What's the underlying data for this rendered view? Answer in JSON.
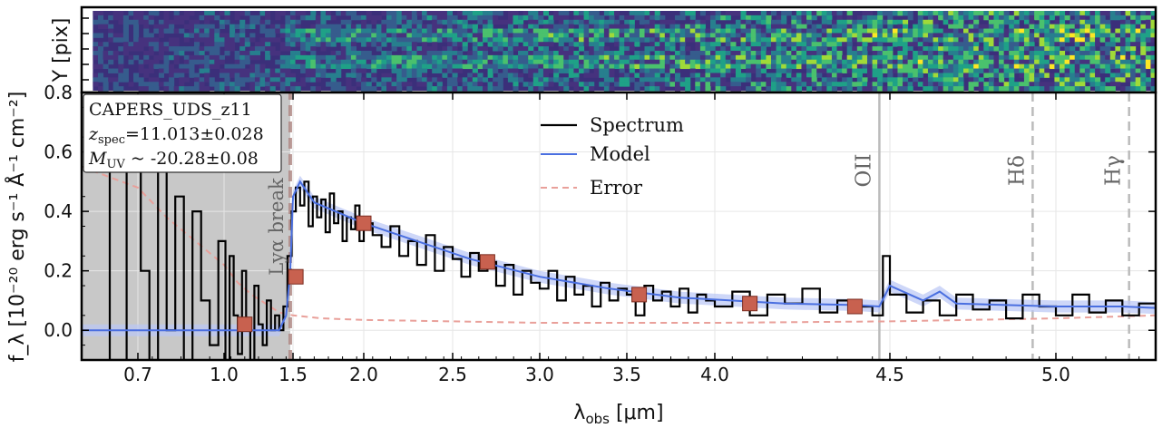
{
  "chart_data": {
    "type": "line",
    "object_name": "CAPERS_UDS_z11",
    "z_spec_label": "z",
    "z_spec_sub": "spec",
    "z_spec_value": "=11.013±0.028",
    "muv_label": "M",
    "muv_sub": "UV",
    "muv_value": " ~ -20.28±0.08",
    "xlabel_main": "λ",
    "xlabel_sub": "obs",
    "xlabel_unit": " [μm]",
    "ylabel": "f_λ [10⁻²⁰ erg s⁻¹ Å⁻¹ cm⁻²]",
    "y2d_label": "Y [pix]",
    "ylim": [
      -0.1,
      0.8
    ],
    "yticks": [
      0.0,
      0.2,
      0.4,
      0.6,
      0.8
    ],
    "ytick_labels": [
      "0.0",
      "0.2",
      "0.4",
      "0.6",
      "0.8"
    ],
    "xticks": [
      0.7,
      1.0,
      1.5,
      2.0,
      2.5,
      3.0,
      3.5,
      4.0,
      4.5,
      5.0
    ],
    "xtick_labels": [
      "0.7",
      "1.0",
      "1.5",
      "2.0",
      "2.5",
      "3.0",
      "3.5",
      "4.0",
      "4.5",
      "5.0"
    ],
    "legend": {
      "position": "top-center",
      "entries": [
        {
          "label": "Spectrum",
          "color": "#000000",
          "style": "solid"
        },
        {
          "label": "Model",
          "color": "#4a6fe0",
          "style": "solid"
        },
        {
          "label": "Error",
          "color": "#e9a09a",
          "style": "dashed"
        }
      ]
    },
    "lines": [
      {
        "label": "OII",
        "x": 4.47,
        "style": "solid",
        "color": "#bbbbbb"
      },
      {
        "label": "Hδ",
        "x": 4.93,
        "style": "dashed",
        "color": "#bbbbbb"
      },
      {
        "label": "Hγ",
        "x": 5.22,
        "style": "dashed",
        "color": "#bbbbbb"
      }
    ],
    "break": {
      "label": "Lyα break",
      "x": 1.48
    },
    "shaded_region": {
      "x": [
        0.6,
        1.48
      ],
      "color": "#c8c8c8"
    },
    "model_points": [
      {
        "x": 1.15,
        "y": 0.02
      },
      {
        "x": 1.52,
        "y": 0.18
      },
      {
        "x": 2.0,
        "y": 0.36
      },
      {
        "x": 2.7,
        "y": 0.23
      },
      {
        "x": 3.57,
        "y": 0.12
      },
      {
        "x": 4.1,
        "y": 0.09
      },
      {
        "x": 4.4,
        "y": 0.08
      }
    ],
    "model_curve": {
      "x": [
        0.6,
        1.0,
        1.4,
        1.45,
        1.48,
        1.5,
        1.55,
        1.65,
        1.8,
        2.0,
        2.3,
        2.6,
        3.0,
        3.4,
        3.8,
        4.2,
        4.4,
        4.47,
        4.5,
        4.6,
        4.65,
        4.7,
        5.0,
        5.2,
        5.3
      ],
      "y": [
        0.0,
        0.0,
        0.0,
        0.05,
        0.2,
        0.45,
        0.5,
        0.43,
        0.4,
        0.36,
        0.3,
        0.24,
        0.18,
        0.14,
        0.11,
        0.09,
        0.085,
        0.08,
        0.15,
        0.1,
        0.13,
        0.09,
        0.08,
        0.08,
        0.075
      ]
    },
    "error_curve": {
      "x": [
        0.6,
        0.7,
        0.8,
        0.9,
        1.0,
        1.1,
        1.2,
        1.3,
        1.4,
        1.5,
        1.7,
        2.0,
        2.5,
        3.0,
        3.5,
        4.0,
        4.5,
        5.0,
        5.3
      ],
      "y": [
        0.55,
        0.48,
        0.38,
        0.3,
        0.22,
        0.16,
        0.12,
        0.09,
        0.06,
        0.05,
        0.04,
        0.035,
        0.03,
        0.025,
        0.025,
        0.025,
        0.03,
        0.04,
        0.05
      ]
    },
    "spectrum": {
      "x": [
        0.62,
        0.65,
        0.68,
        0.71,
        0.74,
        0.77,
        0.8,
        0.83,
        0.86,
        0.89,
        0.92,
        0.95,
        0.98,
        1.01,
        1.04,
        1.07,
        1.1,
        1.13,
        1.16,
        1.19,
        1.22,
        1.25,
        1.28,
        1.31,
        1.34,
        1.37,
        1.4,
        1.43,
        1.46,
        1.49,
        1.52,
        1.55,
        1.58,
        1.61,
        1.64,
        1.67,
        1.7,
        1.73,
        1.76,
        1.79,
        1.82,
        1.85,
        1.88,
        1.91,
        1.94,
        1.97,
        2.0,
        2.05,
        2.1,
        2.15,
        2.2,
        2.25,
        2.3,
        2.35,
        2.4,
        2.45,
        2.5,
        2.55,
        2.6,
        2.65,
        2.7,
        2.75,
        2.8,
        2.85,
        2.9,
        2.95,
        3.0,
        3.05,
        3.1,
        3.15,
        3.2,
        3.25,
        3.3,
        3.35,
        3.4,
        3.45,
        3.5,
        3.55,
        3.6,
        3.65,
        3.7,
        3.75,
        3.8,
        3.85,
        3.9,
        3.95,
        4.0,
        4.05,
        4.1,
        4.15,
        4.2,
        4.25,
        4.3,
        4.35,
        4.4,
        4.45,
        4.48,
        4.5,
        4.55,
        4.6,
        4.65,
        4.7,
        4.75,
        4.8,
        4.85,
        4.9,
        4.95,
        5.0,
        5.05,
        5.1,
        5.15,
        5.2,
        5.25,
        5.3
      ],
      "y": [
        0.55,
        -0.1,
        0.6,
        0.2,
        -0.1,
        0.58,
        0.0,
        0.45,
        -0.1,
        0.4,
        0.1,
        -0.05,
        0.3,
        -0.1,
        0.25,
        0.05,
        -0.08,
        0.2,
        0.0,
        -0.1,
        0.15,
        0.02,
        -0.05,
        0.1,
        0.0,
        0.05,
        0.0,
        0.08,
        0.25,
        0.4,
        0.48,
        0.42,
        0.5,
        0.35,
        0.45,
        0.38,
        0.44,
        0.33,
        0.46,
        0.36,
        0.4,
        0.3,
        0.38,
        0.34,
        0.42,
        0.3,
        0.36,
        0.32,
        0.28,
        0.35,
        0.25,
        0.3,
        0.22,
        0.32,
        0.2,
        0.28,
        0.24,
        0.18,
        0.26,
        0.2,
        0.23,
        0.15,
        0.22,
        0.12,
        0.2,
        0.16,
        0.14,
        0.2,
        0.1,
        0.18,
        0.12,
        0.15,
        0.08,
        0.16,
        0.1,
        0.14,
        0.12,
        0.05,
        0.15,
        0.1,
        0.13,
        0.08,
        0.14,
        0.06,
        0.12,
        0.1,
        0.08,
        0.13,
        0.05,
        0.12,
        0.09,
        0.14,
        0.06,
        0.1,
        0.08,
        0.05,
        0.25,
        0.12,
        0.06,
        0.1,
        0.05,
        0.12,
        0.07,
        0.1,
        0.04,
        0.12,
        0.08,
        0.05,
        0.12,
        0.06,
        0.1,
        0.05,
        0.09,
        0.07
      ]
    },
    "spectrum_2d": {
      "rows": 6,
      "cols": 70
    }
  }
}
